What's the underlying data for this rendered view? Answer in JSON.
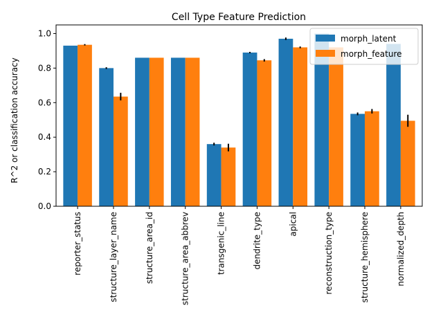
{
  "chart_data": {
    "type": "bar",
    "title": "Cell Type Feature Prediction",
    "xlabel": "",
    "ylabel": "R^2 or classification accuracy",
    "ylim": [
      0,
      1.05
    ],
    "yticks": [
      "0.0",
      "0.2",
      "0.4",
      "0.6",
      "0.8",
      "1.0"
    ],
    "ytick_values": [
      0,
      0.2,
      0.4,
      0.6,
      0.8,
      1.0
    ],
    "grid": false,
    "legend_position": "top-right",
    "categories": [
      "reporter_status",
      "structure_layer_name",
      "structure_area_id",
      "structure_area_abbrev",
      "transgenic_line",
      "dendrite_type",
      "apical",
      "reconstruction_type",
      "structure_hemisphere",
      "normalized_depth"
    ],
    "series": [
      {
        "name": "morph_latent",
        "color": "#1f77b4",
        "values": [
          0.93,
          0.8,
          0.86,
          0.86,
          0.36,
          0.89,
          0.97,
          1.0,
          0.535,
          0.94
        ],
        "errors": [
          0.0,
          0.005,
          0.0,
          0.0,
          0.008,
          0.004,
          0.007,
          0.0,
          0.008,
          0.0
        ]
      },
      {
        "name": "morph_feature",
        "color": "#ff7f0e",
        "values": [
          0.935,
          0.635,
          0.86,
          0.86,
          0.34,
          0.845,
          0.92,
          0.92,
          0.55,
          0.495
        ],
        "errors": [
          0.004,
          0.022,
          0.0,
          0.0,
          0.022,
          0.007,
          0.005,
          0.0,
          0.013,
          0.035
        ]
      }
    ]
  }
}
